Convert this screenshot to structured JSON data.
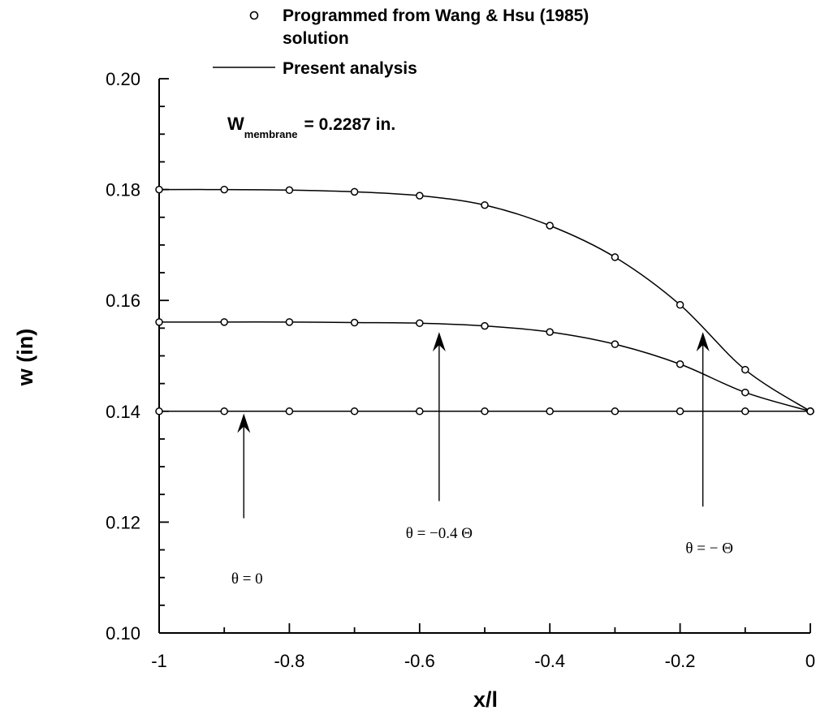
{
  "chart_data": {
    "type": "line",
    "xlabel": "x/l",
    "ylabel": "w (in)",
    "xlim": [
      -1,
      0
    ],
    "ylim": [
      0.1,
      0.2
    ],
    "x_ticks": [
      "-1",
      "-0.8",
      "-0.6",
      "-0.4",
      "-0.2",
      "0"
    ],
    "y_ticks": [
      "0.20",
      "0.18",
      "0.16",
      "0.14",
      "0.12",
      "0.10"
    ],
    "legend": {
      "marker_label_line1": "Programmed from Wang & Hsu (1985)",
      "marker_label_line2": "solution",
      "line_label": "Present analysis",
      "marker_symbol": "o",
      "position": "top"
    },
    "membrane": {
      "main": "W",
      "subscript": "membrane",
      "value": "= 0.2287  in."
    },
    "series": [
      {
        "annotation": "θ = 0",
        "curve": [
          [
            -1,
            0.14
          ],
          [
            0,
            0.14
          ]
        ],
        "markers": [
          [
            -1,
            0.14
          ],
          [
            -0.9,
            0.14
          ],
          [
            -0.8,
            0.14
          ],
          [
            -0.7,
            0.14
          ],
          [
            -0.6,
            0.14
          ],
          [
            -0.5,
            0.14
          ],
          [
            -0.4,
            0.14
          ],
          [
            -0.3,
            0.14
          ],
          [
            -0.2,
            0.14
          ],
          [
            -0.1,
            0.14
          ],
          [
            0,
            0.14
          ]
        ],
        "arrow": {
          "x": -0.87,
          "tip_y": 0.1396,
          "tail_y": 0.1207
        },
        "label_pos": [
          -0.865,
          0.1089
        ]
      },
      {
        "annotation": "θ = −0.4 Θ",
        "curve": [
          [
            -1,
            0.1561
          ],
          [
            -0.9,
            0.1561
          ],
          [
            -0.8,
            0.1561
          ],
          [
            -0.7,
            0.156
          ],
          [
            -0.6,
            0.1559
          ],
          [
            -0.5,
            0.1554
          ],
          [
            -0.4,
            0.1543
          ],
          [
            -0.3,
            0.1521
          ],
          [
            -0.2,
            0.1485
          ],
          [
            -0.1,
            0.1434
          ],
          [
            0,
            0.14
          ]
        ],
        "markers": [
          [
            -1,
            0.1561
          ],
          [
            -0.9,
            0.1561
          ],
          [
            -0.8,
            0.1561
          ],
          [
            -0.7,
            0.156
          ],
          [
            -0.6,
            0.1559
          ],
          [
            -0.5,
            0.1554
          ],
          [
            -0.4,
            0.1543
          ],
          [
            -0.3,
            0.1521
          ],
          [
            -0.2,
            0.1485
          ],
          [
            -0.1,
            0.1434
          ],
          [
            0,
            0.14
          ]
        ],
        "arrow": {
          "x": -0.57,
          "tip_y": 0.1543,
          "tail_y": 0.1238
        },
        "label_pos": [
          -0.57,
          0.1171
        ]
      },
      {
        "annotation": "θ = − Θ",
        "curve": [
          [
            -1,
            0.18
          ],
          [
            -0.9,
            0.18
          ],
          [
            -0.8,
            0.1799
          ],
          [
            -0.7,
            0.1796
          ],
          [
            -0.6,
            0.1789
          ],
          [
            -0.5,
            0.1772
          ],
          [
            -0.4,
            0.1735
          ],
          [
            -0.3,
            0.1678
          ],
          [
            -0.2,
            0.1592
          ],
          [
            -0.1,
            0.1475
          ],
          [
            0,
            0.14
          ]
        ],
        "markers": [
          [
            -1,
            0.18
          ],
          [
            -0.9,
            0.18
          ],
          [
            -0.8,
            0.1799
          ],
          [
            -0.7,
            0.1796
          ],
          [
            -0.6,
            0.1789
          ],
          [
            -0.5,
            0.1772
          ],
          [
            -0.4,
            0.1735
          ],
          [
            -0.3,
            0.1678
          ],
          [
            -0.2,
            0.1592
          ],
          [
            -0.1,
            0.1475
          ],
          [
            0,
            0.14
          ]
        ],
        "arrow": {
          "x": -0.165,
          "tip_y": 0.1543,
          "tail_y": 0.1228
        },
        "label_pos": [
          -0.155,
          0.1144
        ]
      }
    ]
  }
}
